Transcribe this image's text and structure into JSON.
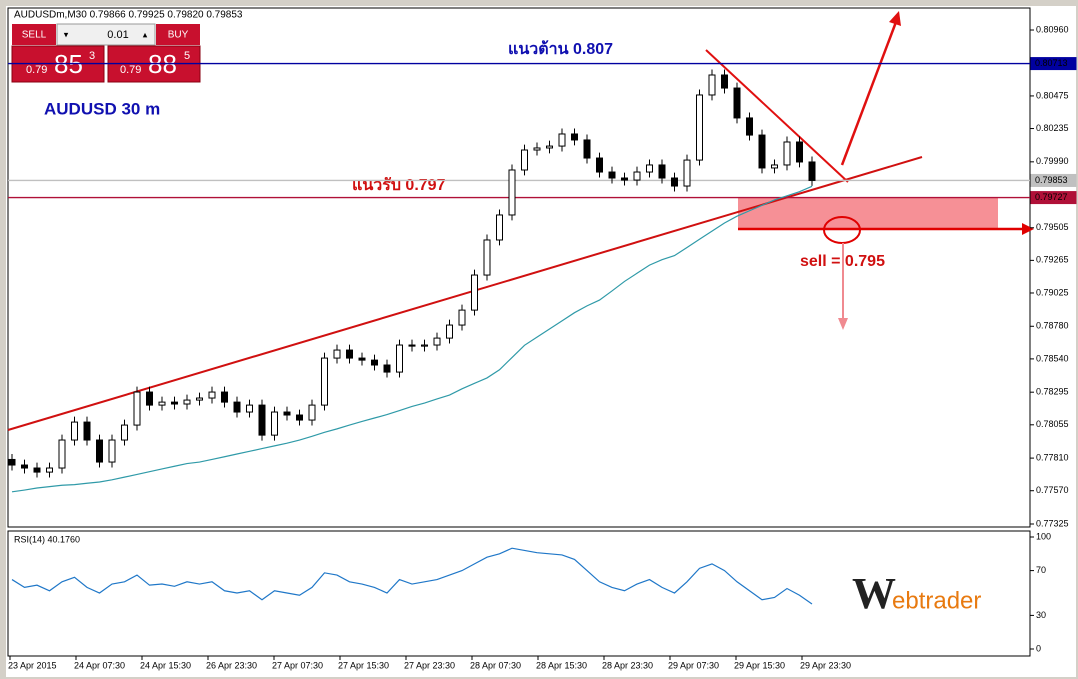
{
  "chart_data": {
    "type": "candlestick",
    "header": "AUDUSDm,M30  0.79866 0.79925 0.79820 0.79853",
    "subtitle": "AUDUSD  30 m",
    "annotations": [
      "แนวต้าน 0.807",
      "แนวรับ 0.797",
      "sell = 0.795"
    ],
    "trade_panel": {
      "sell": "SELL",
      "buy": "BUY",
      "lot": "0.01",
      "sell_price": [
        "0.79",
        "85",
        "3"
      ],
      "buy_price": [
        "0.79",
        "88",
        "5"
      ]
    },
    "logo": {
      "w": "W",
      "rest": "ebtrader"
    },
    "x_labels": [
      "23 Apr 2015",
      "24 Apr 07:30",
      "24 Apr 15:30",
      "26 Apr 23:30",
      "27 Apr 07:30",
      "27 Apr 15:30",
      "27 Apr 23:30",
      "28 Apr 07:30",
      "28 Apr 15:30",
      "28 Apr 23:30",
      "29 Apr 07:30",
      "29 Apr 15:30",
      "29 Apr 23:30"
    ],
    "ylim": [
      0.77303,
      0.81122
    ],
    "yticks": [
      {
        "value": 0.8096,
        "label": "0.80960"
      },
      0.80475,
      0.80235,
      {
        "value": 0.7999,
        "label": "0.79990"
      },
      0.79505,
      0.79265,
      0.79025,
      {
        "value": 0.7878,
        "label": "0.78780"
      },
      {
        "value": 0.7854,
        "label": "0.78540"
      },
      0.78295,
      0.78055,
      {
        "value": 0.7781,
        "label": "0.77810"
      },
      {
        "value": 0.7757,
        "label": "0.77570"
      },
      0.77325
    ],
    "levels": [
      {
        "value": 0.80713,
        "color": "#0000a0"
      },
      {
        "value": 0.79853,
        "color": "#c0c0c0"
      },
      {
        "value": 0.79727,
        "color": "#b01038"
      }
    ],
    "candle_color": "#000000",
    "open": [
      0.778,
      0.77759,
      0.77737,
      0.77707,
      0.77737,
      0.77943,
      0.78075,
      0.77943,
      0.77781,
      0.77943,
      0.78053,
      0.78296,
      0.782,
      0.78222,
      0.78208,
      0.78237,
      0.78252,
      0.78296,
      0.78222,
      0.78149,
      0.782,
      0.77979,
      0.78149,
      0.78127,
      0.7809,
      0.782,
      0.78546,
      0.78605,
      0.78546,
      0.78531,
      0.78495,
      0.78443,
      0.78642,
      0.78634,
      0.78642,
      0.78693,
      0.78789,
      0.78899,
      0.79157,
      0.79415,
      0.79599,
      0.7993,
      0.80077,
      0.80092,
      0.80106,
      0.80195,
      0.80151,
      0.80018,
      0.79915,
      0.79871,
      0.79856,
      0.79915,
      0.79967,
      0.79871,
      0.79812,
      0.80003,
      0.80482,
      0.80629,
      0.80533,
      0.80313,
      0.80187,
      0.79945,
      0.79967,
      0.80136,
      0.79989
    ],
    "high": [
      0.7784,
      0.77799,
      0.77777,
      0.77777,
      0.77983,
      0.78115,
      0.78115,
      0.77983,
      0.77983,
      0.78093,
      0.78336,
      0.78336,
      0.78262,
      0.78262,
      0.78277,
      0.78292,
      0.78336,
      0.78336,
      0.78262,
      0.7824,
      0.7824,
      0.78189,
      0.78189,
      0.78167,
      0.7824,
      0.78586,
      0.78645,
      0.78645,
      0.78586,
      0.78571,
      0.78535,
      0.78682,
      0.78682,
      0.78682,
      0.78733,
      0.78829,
      0.78939,
      0.79197,
      0.79455,
      0.79639,
      0.7997,
      0.80117,
      0.80132,
      0.80146,
      0.80235,
      0.80235,
      0.80191,
      0.80058,
      0.79955,
      0.79911,
      0.79955,
      0.80007,
      0.80007,
      0.79911,
      0.80043,
      0.80522,
      0.80669,
      0.80669,
      0.80573,
      0.80353,
      0.80227,
      0.80007,
      0.80176,
      0.80176,
      0.80029
    ],
    "low": [
      0.77719,
      0.77697,
      0.77667,
      0.77667,
      0.77697,
      0.77903,
      0.77903,
      0.77741,
      0.77741,
      0.77903,
      0.78013,
      0.7816,
      0.7816,
      0.78168,
      0.78168,
      0.78197,
      0.78212,
      0.78182,
      0.78109,
      0.78109,
      0.77939,
      0.77939,
      0.78087,
      0.7805,
      0.7805,
      0.7816,
      0.78506,
      0.78506,
      0.78491,
      0.78455,
      0.78403,
      0.78403,
      0.78594,
      0.78594,
      0.78602,
      0.78653,
      0.78749,
      0.78859,
      0.79117,
      0.79375,
      0.79559,
      0.7989,
      0.80037,
      0.80052,
      0.80066,
      0.80111,
      0.79978,
      0.79875,
      0.79831,
      0.79816,
      0.79816,
      0.79875,
      0.79831,
      0.79772,
      0.79772,
      0.79963,
      0.80442,
      0.80493,
      0.80273,
      0.80147,
      0.79905,
      0.79905,
      0.79927,
      0.79949,
      0.79813
    ],
    "close": [
      0.77759,
      0.77737,
      0.77707,
      0.77737,
      0.77943,
      0.78075,
      0.77943,
      0.77781,
      0.77943,
      0.78053,
      0.78296,
      0.782,
      0.78222,
      0.78208,
      0.78237,
      0.78252,
      0.78296,
      0.78222,
      0.78149,
      0.782,
      0.77979,
      0.78149,
      0.78127,
      0.7809,
      0.782,
      0.78546,
      0.78605,
      0.78546,
      0.78531,
      0.78495,
      0.78443,
      0.78642,
      0.78634,
      0.78642,
      0.78693,
      0.78789,
      0.78899,
      0.79157,
      0.79415,
      0.79599,
      0.7993,
      0.80077,
      0.80092,
      0.80106,
      0.80195,
      0.80151,
      0.80018,
      0.79915,
      0.79871,
      0.79856,
      0.79915,
      0.79967,
      0.79871,
      0.79812,
      0.80003,
      0.80482,
      0.80629,
      0.80533,
      0.80313,
      0.80187,
      0.79945,
      0.79967,
      0.80136,
      0.79989,
      0.79853
    ],
    "ma": {
      "color": "#2f9aa8",
      "values": [
        0.77562,
        0.77575,
        0.7759,
        0.776,
        0.7761,
        0.77615,
        0.77625,
        0.77634,
        0.7765,
        0.7767,
        0.7769,
        0.7771,
        0.7773,
        0.7775,
        0.7777,
        0.77781,
        0.778,
        0.7782,
        0.7784,
        0.7786,
        0.7788,
        0.779,
        0.7792,
        0.77943,
        0.7797,
        0.78,
        0.78025,
        0.78053,
        0.7808,
        0.78105,
        0.7813,
        0.7816,
        0.7819,
        0.78215,
        0.78245,
        0.78274,
        0.7832,
        0.7836,
        0.784,
        0.7846,
        0.7855,
        0.7864,
        0.787,
        0.7876,
        0.7882,
        0.7888,
        0.7893,
        0.78973,
        0.7904,
        0.7911,
        0.7917,
        0.7923,
        0.7927,
        0.793,
        0.7936,
        0.7942,
        0.7948,
        0.7954,
        0.7959,
        0.7963,
        0.7967,
        0.7971,
        0.7974,
        0.7977,
        0.7981
      ]
    },
    "rsi": {
      "title": "RSI(14) 40.1760",
      "color": "#1f77c8",
      "ylim": [
        0,
        100
      ],
      "yticks": [
        100,
        70,
        30,
        0
      ],
      "values": [
        62,
        55,
        57,
        52,
        60,
        64,
        55,
        50,
        58,
        60,
        66,
        57,
        58,
        56,
        60,
        58,
        60,
        52,
        50,
        52,
        44,
        52,
        50,
        48,
        55,
        68,
        66,
        60,
        58,
        55,
        50,
        62,
        58,
        60,
        62,
        66,
        70,
        76,
        82,
        85,
        90,
        88,
        86,
        85,
        84,
        80,
        70,
        60,
        55,
        52,
        58,
        62,
        55,
        50,
        60,
        72,
        76,
        70,
        60,
        52,
        44,
        46,
        54,
        48,
        40.176
      ]
    }
  }
}
